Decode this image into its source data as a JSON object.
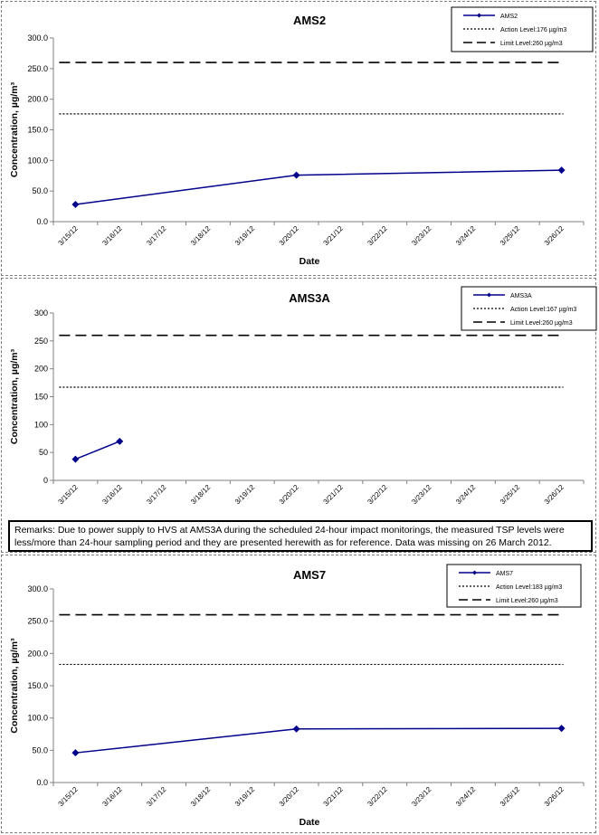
{
  "chart_data": [
    {
      "type": "line",
      "title": "AMS2",
      "xlabel": "Date",
      "ylabel": "Concentration, µg/m³",
      "ylim": [
        0,
        300
      ],
      "ytick_labels": [
        "0.0",
        "50.0",
        "100.0",
        "150.0",
        "200.0",
        "250.0",
        "300.0"
      ],
      "categories": [
        "3/15/12",
        "3/16/12",
        "3/17/12",
        "3/18/12",
        "3/19/12",
        "3/20/12",
        "3/21/12",
        "3/22/12",
        "3/23/12",
        "3/24/12",
        "3/25/12",
        "3/26/12"
      ],
      "series": [
        {
          "name": "AMS2",
          "style": "line-marker",
          "color": "#00008b",
          "points": [
            {
              "x": "3/15/12",
              "y": 28
            },
            {
              "x": "3/20/12",
              "y": 76
            },
            {
              "x": "3/26/12",
              "y": 84
            }
          ]
        },
        {
          "name": "Action Level:176 µg/m3",
          "style": "dotted",
          "color": "#000000",
          "value": 176
        },
        {
          "name": "Limit Level:260 µg/m3",
          "style": "dashed",
          "color": "#000000",
          "value": 260
        }
      ],
      "legend": "top-right",
      "grid": false
    },
    {
      "type": "line",
      "title": "AMS3A",
      "xlabel": "",
      "ylabel": "Concentration, µg/m³",
      "ylim": [
        0,
        300
      ],
      "ytick_labels": [
        "0",
        "50",
        "100",
        "150",
        "200",
        "250",
        "300"
      ],
      "categories": [
        "3/15/12",
        "3/16/12",
        "3/17/12",
        "3/18/12",
        "3/19/12",
        "3/20/12",
        "3/21/12",
        "3/22/12",
        "3/23/12",
        "3/24/12",
        "3/25/12",
        "3/26/12"
      ],
      "series": [
        {
          "name": "AMS3A",
          "style": "line-marker",
          "color": "#00008b",
          "points": [
            {
              "x": "3/15/12",
              "y": 38
            },
            {
              "x": "3/16/12",
              "y": 70
            }
          ]
        },
        {
          "name": "Action Level:167 µg/m3",
          "style": "dotted",
          "color": "#000000",
          "value": 167
        },
        {
          "name": "Limit Level:260 µg/m3",
          "style": "dashed",
          "color": "#000000",
          "value": 260
        }
      ],
      "legend": "top-right",
      "grid": false
    },
    {
      "type": "line",
      "title": "AMS7",
      "xlabel": "Date",
      "ylabel": "Concentration, µg/m³",
      "ylim": [
        0,
        300
      ],
      "ytick_labels": [
        "0.0",
        "50.0",
        "100.0",
        "150.0",
        "200.0",
        "250.0",
        "300.0"
      ],
      "categories": [
        "3/15/12",
        "3/16/12",
        "3/17/12",
        "3/18/12",
        "3/19/12",
        "3/20/12",
        "3/21/12",
        "3/22/12",
        "3/23/12",
        "3/24/12",
        "3/25/12",
        "3/26/12"
      ],
      "series": [
        {
          "name": "AMS7",
          "style": "line-marker",
          "color": "#00008b",
          "points": [
            {
              "x": "3/15/12",
              "y": 46
            },
            {
              "x": "3/20/12",
              "y": 83
            },
            {
              "x": "3/26/12",
              "y": 84
            }
          ]
        },
        {
          "name": "Action Level:183 µg/m3",
          "style": "dotted",
          "color": "#000000",
          "value": 183
        },
        {
          "name": "Limit Level:260 µg/m3",
          "style": "dashed",
          "color": "#000000",
          "value": 260
        }
      ],
      "legend": "top-right",
      "grid": false
    }
  ],
  "remarks": "Remarks: Due to power supply to HVS at AMS3A during the scheduled 24-hour impact monitorings, the measured TSP levels were less/more than 24-hour sampling  period and they are presented herewith as for reference. Data was missing on  26 March 2012."
}
